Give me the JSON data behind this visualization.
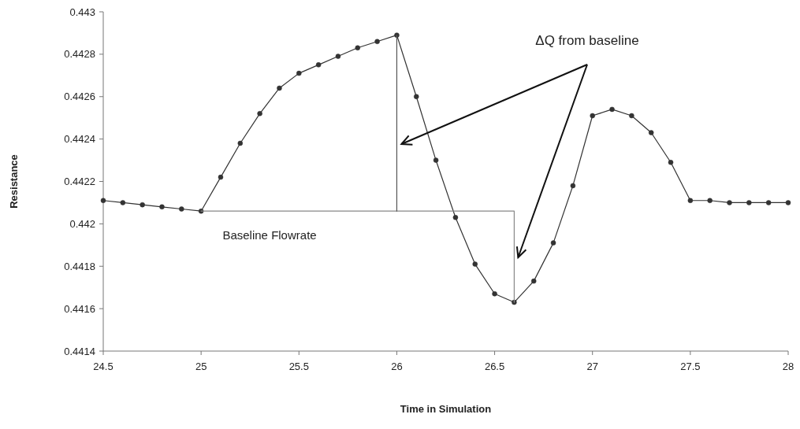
{
  "chart_data": {
    "type": "line",
    "xlabel": "Time in Simulation",
    "ylabel": "Resistance",
    "x": [
      24.5,
      24.6,
      24.7,
      24.8,
      24.9,
      25.0,
      25.1,
      25.2,
      25.3,
      25.4,
      25.5,
      25.6,
      25.7,
      25.8,
      25.9,
      26.0,
      26.1,
      26.2,
      26.3,
      26.4,
      26.5,
      26.6,
      26.7,
      26.8,
      26.9,
      27.0,
      27.1,
      27.2,
      27.3,
      27.4,
      27.5,
      27.6,
      27.7,
      27.8,
      27.9,
      28.0
    ],
    "series": [
      {
        "color": "#333333",
        "values": [
          0.44211,
          0.4421,
          0.44209,
          0.44208,
          0.44207,
          0.44206,
          0.44222,
          0.44238,
          0.44252,
          0.44264,
          0.44271,
          0.44275,
          0.44279,
          0.44283,
          0.44286,
          0.44289,
          0.4426,
          0.4423,
          0.44203,
          0.44181,
          0.44167,
          0.44163,
          0.44173,
          0.44191,
          0.44218,
          0.44251,
          0.44254,
          0.44251,
          0.44243,
          0.44229,
          0.44211,
          0.44211,
          0.4421,
          0.4421,
          0.4421,
          0.4421
        ]
      },
      {
        "color": "#888888",
        "marker": "none",
        "x": [
          25.0,
          26.6,
          26.6
        ],
        "values": [
          0.44206,
          0.44206,
          0.44163
        ]
      },
      {
        "color": "#555555",
        "marker": "none",
        "x": [
          26.0,
          26.0
        ],
        "values": [
          0.44206,
          0.44289
        ]
      }
    ],
    "xlim": [
      24.5,
      28
    ],
    "xticks": [
      24.5,
      25,
      25.5,
      26,
      26.5,
      27,
      27.5,
      28
    ],
    "ylim": [
      0.4414,
      0.443
    ],
    "yticks": [
      0.4414,
      0.4416,
      0.4418,
      0.442,
      0.4422,
      0.4424,
      0.4426,
      0.4428,
      0.443
    ],
    "grid": false,
    "marker": "circle",
    "line_style": "solid",
    "annotations": [
      "ΔQ from baseline",
      "Baseline Flowrate"
    ]
  }
}
